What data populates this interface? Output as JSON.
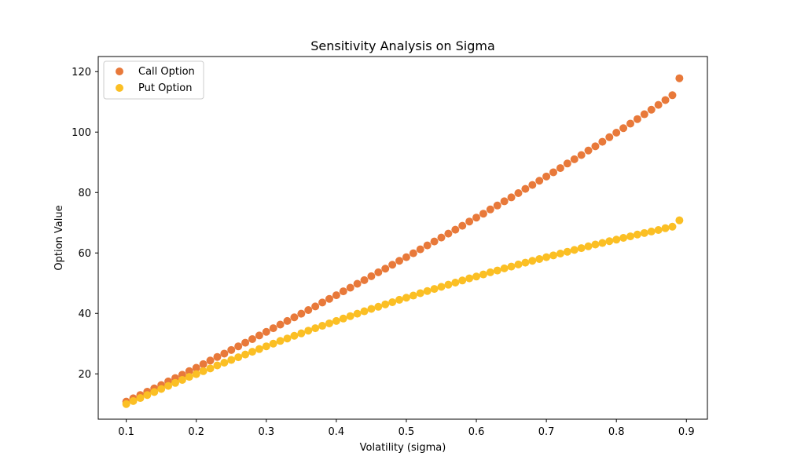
{
  "chart_data": {
    "type": "scatter",
    "title": "Sensitivity Analysis on Sigma",
    "xlabel": "Volatility (sigma)",
    "ylabel": "Option Value",
    "xlim": [
      0.06,
      0.93
    ],
    "ylim": [
      5,
      125
    ],
    "xticks": [
      "0.1",
      "0.2",
      "0.3",
      "0.4",
      "0.5",
      "0.6",
      "0.7",
      "0.8",
      "0.9"
    ],
    "yticks": [
      "20",
      "40",
      "60",
      "80",
      "100",
      "120"
    ],
    "legend_position": "upper-left",
    "grid": false,
    "x": [
      0.1,
      0.11,
      0.12,
      0.13,
      0.14,
      0.15,
      0.16,
      0.17,
      0.18,
      0.19,
      0.2,
      0.21,
      0.22,
      0.23,
      0.24,
      0.25,
      0.26,
      0.27,
      0.28,
      0.29,
      0.3,
      0.31,
      0.32,
      0.33,
      0.34,
      0.35,
      0.36,
      0.37,
      0.38,
      0.39,
      0.4,
      0.41,
      0.42,
      0.43,
      0.44,
      0.45,
      0.46,
      0.47,
      0.48,
      0.49,
      0.5,
      0.51,
      0.52,
      0.53,
      0.54,
      0.55,
      0.56,
      0.57,
      0.58,
      0.59,
      0.6,
      0.61,
      0.62,
      0.63,
      0.64,
      0.65,
      0.66,
      0.67,
      0.68,
      0.69,
      0.7,
      0.71,
      0.72,
      0.73,
      0.74,
      0.75,
      0.76,
      0.77,
      0.78,
      0.79,
      0.8,
      0.81,
      0.82,
      0.83,
      0.84,
      0.85,
      0.86,
      0.87,
      0.88,
      0.89
    ],
    "series": [
      {
        "name": "Call Option",
        "color": "#e8793a",
        "values": [
          10.8,
          11.9,
          13.0,
          14.1,
          15.2,
          16.3,
          17.5,
          18.6,
          19.7,
          20.9,
          22.0,
          23.2,
          24.4,
          25.6,
          26.7,
          27.9,
          29.1,
          30.3,
          31.5,
          32.7,
          33.9,
          35.1,
          36.3,
          37.5,
          38.7,
          39.9,
          41.1,
          42.3,
          43.6,
          44.8,
          46.0,
          47.3,
          48.5,
          49.8,
          51.0,
          52.3,
          53.6,
          54.8,
          56.1,
          57.4,
          58.6,
          59.9,
          61.2,
          62.5,
          63.8,
          65.1,
          66.4,
          67.7,
          69.0,
          70.4,
          71.7,
          73.0,
          74.4,
          75.7,
          77.1,
          78.4,
          79.8,
          81.2,
          82.5,
          83.9,
          85.3,
          86.7,
          88.1,
          89.6,
          91.0,
          92.4,
          93.9,
          95.3,
          96.8,
          98.3,
          99.8,
          101.3,
          102.8,
          104.3,
          105.9,
          107.4,
          109.0,
          110.6,
          112.2,
          117.8
        ]
      },
      {
        "name": "Put Option",
        "color": "#fbbf24",
        "values": [
          10.0,
          11.0,
          12.0,
          13.0,
          14.0,
          15.0,
          16.0,
          17.0,
          18.0,
          19.0,
          19.9,
          20.9,
          21.8,
          22.8,
          23.7,
          24.6,
          25.5,
          26.4,
          27.3,
          28.2,
          29.1,
          30.0,
          30.9,
          31.7,
          32.6,
          33.4,
          34.3,
          35.1,
          35.9,
          36.7,
          37.5,
          38.3,
          39.1,
          39.9,
          40.7,
          41.5,
          42.2,
          43.0,
          43.7,
          44.5,
          45.2,
          45.9,
          46.7,
          47.4,
          48.1,
          48.8,
          49.5,
          50.2,
          50.9,
          51.6,
          52.2,
          52.9,
          53.6,
          54.2,
          54.9,
          55.5,
          56.2,
          56.8,
          57.4,
          58.0,
          58.6,
          59.2,
          59.8,
          60.4,
          61.0,
          61.6,
          62.2,
          62.8,
          63.3,
          63.9,
          64.4,
          65.0,
          65.5,
          66.1,
          66.6,
          67.1,
          67.6,
          68.2,
          68.7,
          70.8
        ]
      }
    ]
  }
}
